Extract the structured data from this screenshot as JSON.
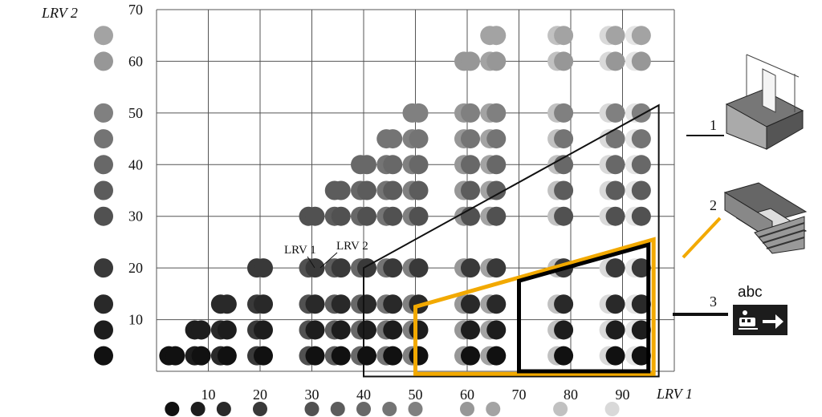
{
  "chart_data": {
    "type": "scatter",
    "title": "",
    "xlabel": "LRV 1",
    "ylabel": "LRV 2",
    "xlim": [
      0,
      100
    ],
    "ylim": [
      0,
      70
    ],
    "x_ticks": [
      10,
      20,
      30,
      40,
      50,
      60,
      70,
      80,
      90
    ],
    "y_ticks": [
      10,
      20,
      30,
      40,
      50,
      60,
      70
    ],
    "grid": true,
    "y_scale_swatches": [
      3,
      8,
      13,
      20,
      30,
      35,
      40,
      45,
      50,
      60,
      65
    ],
    "x_scale_swatches": [
      3,
      8,
      13,
      20,
      30,
      35,
      40,
      45,
      50,
      60,
      65,
      78,
      88
    ],
    "points": [
      {
        "lrv1": 3,
        "lrv2": 3
      },
      {
        "lrv1": 8,
        "lrv2": 3
      },
      {
        "lrv1": 13,
        "lrv2": 3
      },
      {
        "lrv1": 20,
        "lrv2": 3
      },
      {
        "lrv1": 30,
        "lrv2": 3
      },
      {
        "lrv1": 35,
        "lrv2": 3
      },
      {
        "lrv1": 40,
        "lrv2": 3
      },
      {
        "lrv1": 45,
        "lrv2": 3
      },
      {
        "lrv1": 50,
        "lrv2": 3
      },
      {
        "lrv1": 60,
        "lrv2": 3
      },
      {
        "lrv1": 65,
        "lrv2": 3
      },
      {
        "lrv1": 78,
        "lrv2": 3
      },
      {
        "lrv1": 88,
        "lrv2": 3
      },
      {
        "lrv1": 93,
        "lrv2": 3
      },
      {
        "lrv1": 8,
        "lrv2": 8
      },
      {
        "lrv1": 13,
        "lrv2": 8
      },
      {
        "lrv1": 20,
        "lrv2": 8
      },
      {
        "lrv1": 30,
        "lrv2": 8
      },
      {
        "lrv1": 35,
        "lrv2": 8
      },
      {
        "lrv1": 40,
        "lrv2": 8
      },
      {
        "lrv1": 45,
        "lrv2": 8
      },
      {
        "lrv1": 50,
        "lrv2": 8
      },
      {
        "lrv1": 60,
        "lrv2": 8
      },
      {
        "lrv1": 65,
        "lrv2": 8
      },
      {
        "lrv1": 78,
        "lrv2": 8
      },
      {
        "lrv1": 88,
        "lrv2": 8
      },
      {
        "lrv1": 93,
        "lrv2": 8
      },
      {
        "lrv1": 13,
        "lrv2": 13
      },
      {
        "lrv1": 20,
        "lrv2": 13
      },
      {
        "lrv1": 30,
        "lrv2": 13
      },
      {
        "lrv1": 35,
        "lrv2": 13
      },
      {
        "lrv1": 40,
        "lrv2": 13
      },
      {
        "lrv1": 45,
        "lrv2": 13
      },
      {
        "lrv1": 50,
        "lrv2": 13
      },
      {
        "lrv1": 60,
        "lrv2": 13
      },
      {
        "lrv1": 65,
        "lrv2": 13
      },
      {
        "lrv1": 78,
        "lrv2": 13
      },
      {
        "lrv1": 88,
        "lrv2": 13
      },
      {
        "lrv1": 93,
        "lrv2": 13
      },
      {
        "lrv1": 20,
        "lrv2": 20
      },
      {
        "lrv1": 30,
        "lrv2": 20
      },
      {
        "lrv1": 35,
        "lrv2": 20
      },
      {
        "lrv1": 40,
        "lrv2": 20
      },
      {
        "lrv1": 45,
        "lrv2": 20
      },
      {
        "lrv1": 50,
        "lrv2": 20
      },
      {
        "lrv1": 60,
        "lrv2": 20
      },
      {
        "lrv1": 65,
        "lrv2": 20
      },
      {
        "lrv1": 78,
        "lrv2": 20
      },
      {
        "lrv1": 88,
        "lrv2": 20
      },
      {
        "lrv1": 93,
        "lrv2": 20
      },
      {
        "lrv1": 30,
        "lrv2": 30
      },
      {
        "lrv1": 35,
        "lrv2": 30
      },
      {
        "lrv1": 40,
        "lrv2": 30
      },
      {
        "lrv1": 45,
        "lrv2": 30
      },
      {
        "lrv1": 50,
        "lrv2": 30
      },
      {
        "lrv1": 60,
        "lrv2": 30
      },
      {
        "lrv1": 65,
        "lrv2": 30
      },
      {
        "lrv1": 78,
        "lrv2": 30
      },
      {
        "lrv1": 88,
        "lrv2": 30
      },
      {
        "lrv1": 93,
        "lrv2": 30
      },
      {
        "lrv1": 35,
        "lrv2": 35
      },
      {
        "lrv1": 40,
        "lrv2": 35
      },
      {
        "lrv1": 45,
        "lrv2": 35
      },
      {
        "lrv1": 50,
        "lrv2": 35
      },
      {
        "lrv1": 60,
        "lrv2": 35
      },
      {
        "lrv1": 65,
        "lrv2": 35
      },
      {
        "lrv1": 78,
        "lrv2": 35
      },
      {
        "lrv1": 88,
        "lrv2": 35
      },
      {
        "lrv1": 93,
        "lrv2": 35
      },
      {
        "lrv1": 40,
        "lrv2": 40
      },
      {
        "lrv1": 45,
        "lrv2": 40
      },
      {
        "lrv1": 50,
        "lrv2": 40
      },
      {
        "lrv1": 60,
        "lrv2": 40
      },
      {
        "lrv1": 65,
        "lrv2": 40
      },
      {
        "lrv1": 78,
        "lrv2": 40
      },
      {
        "lrv1": 88,
        "lrv2": 40
      },
      {
        "lrv1": 93,
        "lrv2": 40
      },
      {
        "lrv1": 45,
        "lrv2": 45
      },
      {
        "lrv1": 50,
        "lrv2": 45
      },
      {
        "lrv1": 60,
        "lrv2": 45
      },
      {
        "lrv1": 65,
        "lrv2": 45
      },
      {
        "lrv1": 78,
        "lrv2": 45
      },
      {
        "lrv1": 88,
        "lrv2": 45
      },
      {
        "lrv1": 93,
        "lrv2": 45
      },
      {
        "lrv1": 50,
        "lrv2": 50
      },
      {
        "lrv1": 60,
        "lrv2": 50
      },
      {
        "lrv1": 65,
        "lrv2": 50
      },
      {
        "lrv1": 78,
        "lrv2": 50
      },
      {
        "lrv1": 88,
        "lrv2": 50
      },
      {
        "lrv1": 93,
        "lrv2": 50
      },
      {
        "lrv1": 60,
        "lrv2": 60
      },
      {
        "lrv1": 65,
        "lrv2": 60
      },
      {
        "lrv1": 78,
        "lrv2": 60
      },
      {
        "lrv1": 88,
        "lrv2": 60
      },
      {
        "lrv1": 93,
        "lrv2": 60
      },
      {
        "lrv1": 65,
        "lrv2": 65
      },
      {
        "lrv1": 78,
        "lrv2": 65
      },
      {
        "lrv1": 88,
        "lrv2": 65
      },
      {
        "lrv1": 93,
        "lrv2": 65
      }
    ],
    "annotations": {
      "lrv1_label": "LRV 1",
      "lrv2_label": "LRV 2"
    },
    "zones": [
      {
        "label": "1",
        "color": "#111111",
        "polygon": [
          [
            40,
            -1
          ],
          [
            40,
            20
          ],
          [
            97,
            51.5
          ],
          [
            97,
            -1
          ]
        ]
      },
      {
        "label": "2",
        "color": "#F2A900",
        "polygon": [
          [
            50,
            -0.5
          ],
          [
            50,
            12.5
          ],
          [
            96,
            25.5
          ],
          [
            96,
            -0.5
          ]
        ]
      },
      {
        "label": "3",
        "color": "#000000",
        "polygon": [
          [
            70,
            0
          ],
          [
            70,
            17.5
          ],
          [
            95,
            24.5
          ],
          [
            95,
            0
          ]
        ]
      }
    ],
    "sign": {
      "text": "abc",
      "icon": "train-exit-arrow-icon"
    }
  }
}
